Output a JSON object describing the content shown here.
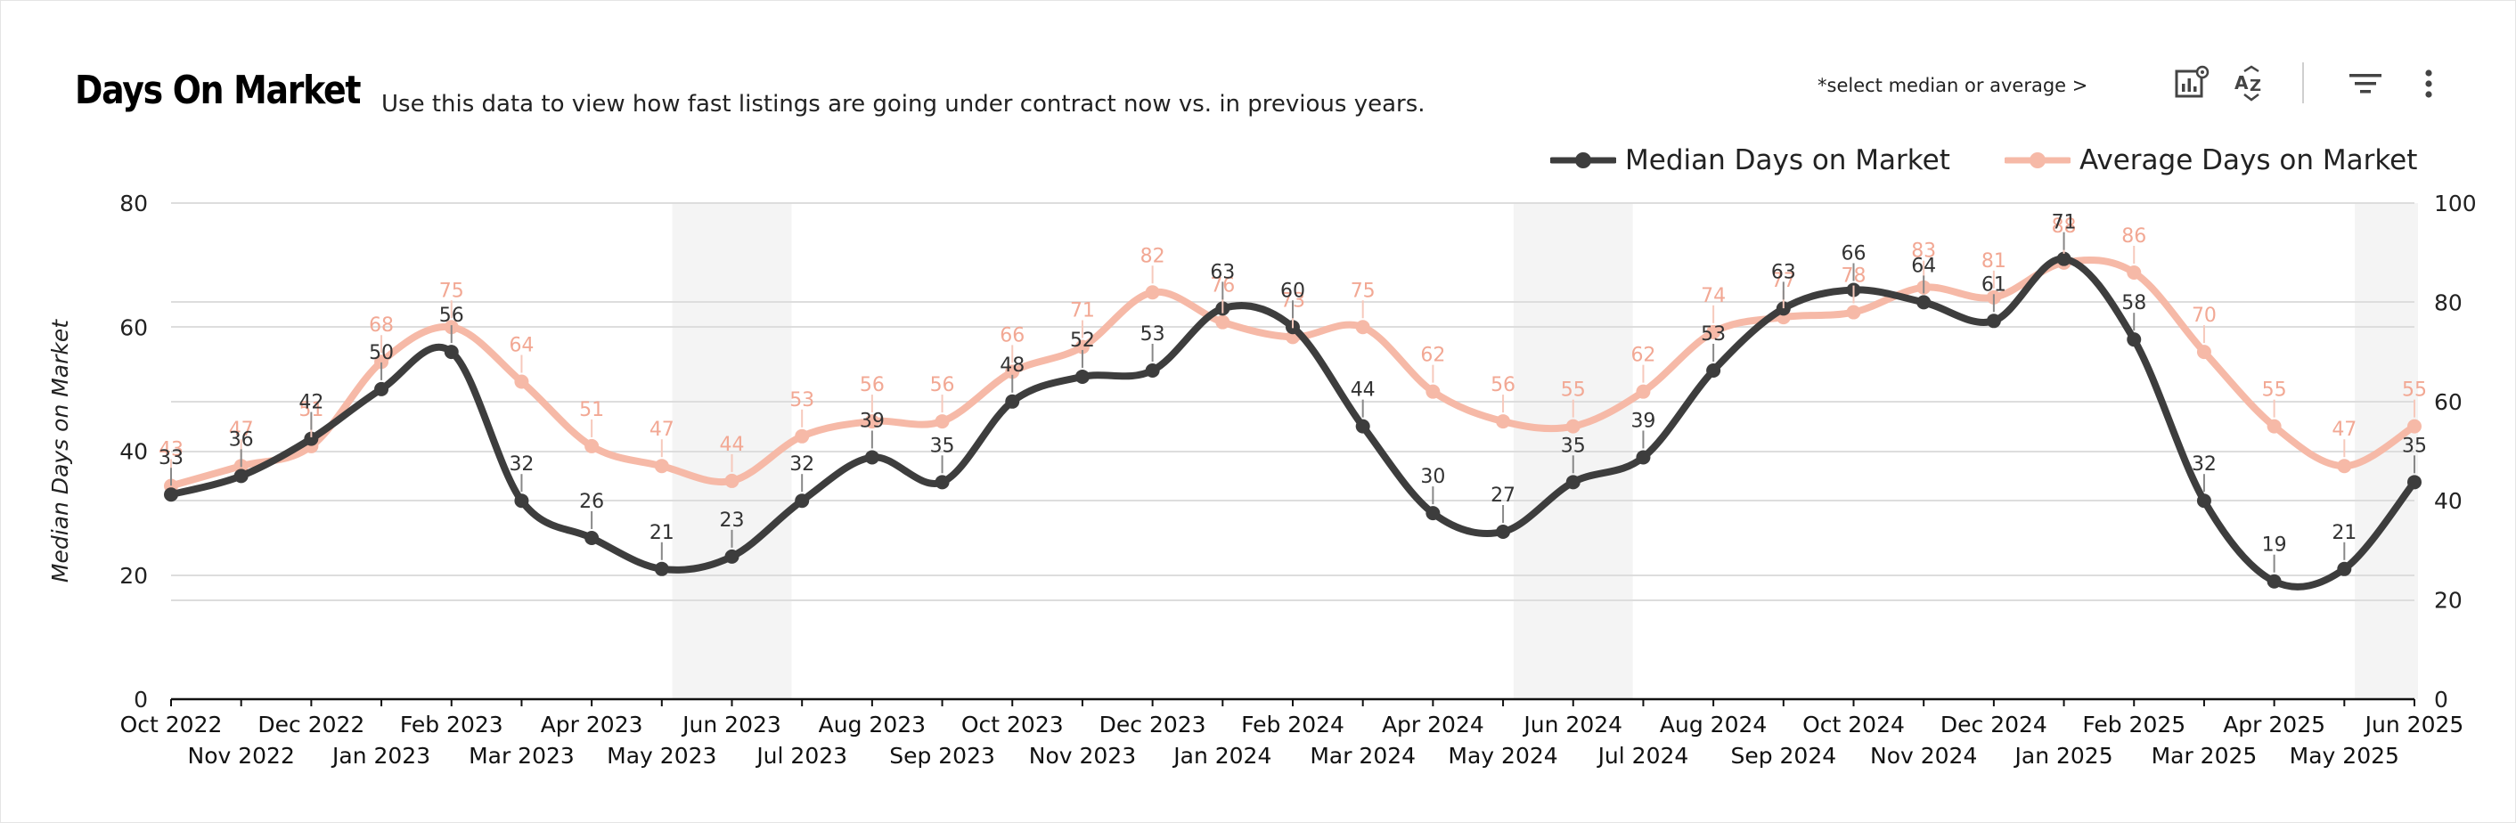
{
  "header": {
    "title": "Days On Market",
    "subtitle": "Use this data to view how fast listings are going under contract now vs. in previous years.",
    "hint": "*select median or average >"
  },
  "toolbar": {
    "icons": [
      "chart-settings-icon",
      "sort-az-icon",
      "filter-icon",
      "more-vert-icon"
    ]
  },
  "colors": {
    "median": "#3d3d3d",
    "average": "#f6b9a7",
    "highlight": "#f4f4f4",
    "grid": "#dddddd"
  },
  "chart_data": {
    "type": "line",
    "categories": [
      "Oct 2022",
      "Nov 2022",
      "Dec 2022",
      "Jan 2023",
      "Feb 2023",
      "Mar 2023",
      "Apr 2023",
      "May 2023",
      "Jun 2023",
      "Jul 2023",
      "Aug 2023",
      "Sep 2023",
      "Oct 2023",
      "Nov 2023",
      "Dec 2023",
      "Jan 2024",
      "Feb 2024",
      "Mar 2024",
      "Apr 2024",
      "May 2024",
      "Jun 2024",
      "Jul 2024",
      "Aug 2024",
      "Sep 2024",
      "Oct 2024",
      "Nov 2024",
      "Dec 2024",
      "Jan 2025",
      "Feb 2025",
      "Mar 2025",
      "Apr 2025",
      "May 2025",
      "Jun 2025"
    ],
    "highlight_categories": [
      "Jun 2023",
      "Jun 2024",
      "Jun 2025"
    ],
    "series": [
      {
        "name": "Median Days on Market",
        "axis": "left",
        "values": [
          33,
          36,
          42,
          50,
          56,
          32,
          26,
          21,
          23,
          32,
          39,
          35,
          48,
          52,
          53,
          63,
          60,
          44,
          30,
          27,
          35,
          39,
          53,
          63,
          66,
          64,
          61,
          71,
          58,
          32,
          19,
          21,
          35
        ]
      },
      {
        "name": "Average Days on Market",
        "axis": "right",
        "values": [
          43,
          47,
          51,
          68,
          75,
          64,
          51,
          47,
          44,
          53,
          56,
          56,
          66,
          71,
          82,
          76,
          73,
          75,
          62,
          56,
          55,
          62,
          74,
          77,
          78,
          83,
          81,
          88,
          86,
          70,
          55,
          47,
          55
        ]
      }
    ],
    "y_left": {
      "label": "Median Days on Market",
      "min": 0,
      "max": 80,
      "ticks": [
        0,
        20,
        40,
        60,
        80
      ]
    },
    "y_right": {
      "label": "",
      "min": 0,
      "max": 100,
      "ticks": [
        0,
        20,
        40,
        60,
        80,
        100
      ]
    },
    "xlabel": "",
    "grid": true,
    "legend_position": "top-right"
  }
}
